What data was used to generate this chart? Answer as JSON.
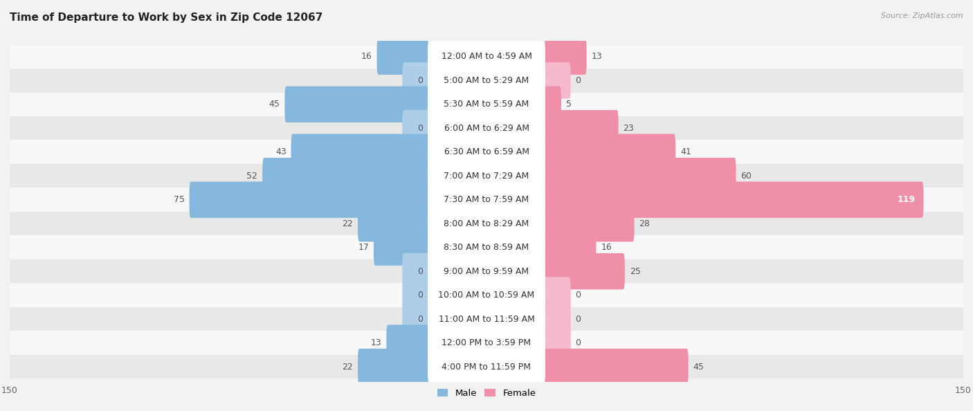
{
  "title": "Time of Departure to Work by Sex in Zip Code 12067",
  "source": "Source: ZipAtlas.com",
  "categories": [
    "12:00 AM to 4:59 AM",
    "5:00 AM to 5:29 AM",
    "5:30 AM to 5:59 AM",
    "6:00 AM to 6:29 AM",
    "6:30 AM to 6:59 AM",
    "7:00 AM to 7:29 AM",
    "7:30 AM to 7:59 AM",
    "8:00 AM to 8:29 AM",
    "8:30 AM to 8:59 AM",
    "9:00 AM to 9:59 AM",
    "10:00 AM to 10:59 AM",
    "11:00 AM to 11:59 AM",
    "12:00 PM to 3:59 PM",
    "4:00 PM to 11:59 PM"
  ],
  "male": [
    16,
    0,
    45,
    0,
    43,
    52,
    75,
    22,
    17,
    0,
    0,
    0,
    13,
    22
  ],
  "female": [
    13,
    0,
    5,
    23,
    41,
    60,
    119,
    28,
    16,
    25,
    0,
    0,
    0,
    45
  ],
  "male_color": "#85B8DC",
  "female_color": "#F090A8",
  "male_color_light": "#AECDE6",
  "female_color_light": "#F5B8CC",
  "xlim": 150,
  "min_bar": 8,
  "bar_height": 0.52,
  "bg_color": "#f2f2f2",
  "row_color_light": "#f8f8f8",
  "row_color_dark": "#e8e8e8",
  "label_box_color": "#ffffff",
  "title_fontsize": 11,
  "label_fontsize": 9,
  "value_fontsize": 9,
  "tick_fontsize": 9
}
